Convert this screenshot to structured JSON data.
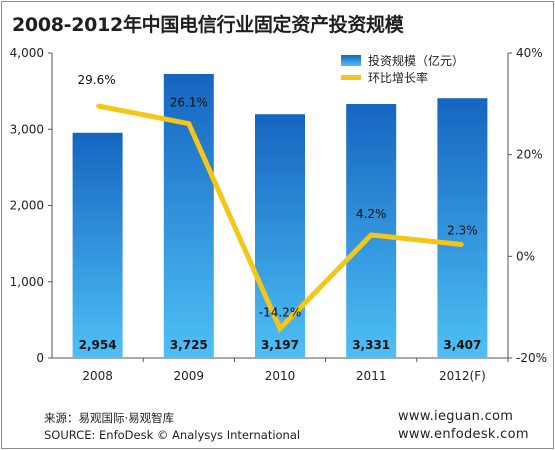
{
  "title": "2008-2012年中国电信行业固定资产投资规模",
  "legend": {
    "bar_label": "投资规模（亿元）",
    "line_label": "环比增长率"
  },
  "colors": {
    "bar_top": "#1565c0",
    "bar_bottom": "#4ec0f5",
    "line": "#f5c518"
  },
  "chart_data": {
    "type": "bar",
    "categories": [
      "2008",
      "2009",
      "2010",
      "2011",
      "2012(F)"
    ],
    "series": [
      {
        "name": "投资规模（亿元）",
        "type": "bar",
        "axis": "left",
        "values": [
          2954,
          3725,
          3197,
          3331,
          3407
        ],
        "labels": [
          "2,954",
          "3,725",
          "3,197",
          "3,331",
          "3,407"
        ]
      },
      {
        "name": "环比增长率",
        "type": "line",
        "axis": "right",
        "values": [
          29.6,
          26.1,
          -14.2,
          4.2,
          2.3
        ],
        "labels": [
          "29.6%",
          "26.1%",
          "-14.2%",
          "4.2%",
          "2.3%"
        ]
      }
    ],
    "y_left": {
      "range": [
        0,
        4000
      ],
      "ticks": [
        "0",
        "1,000",
        "2,000",
        "3,000",
        "4,000"
      ]
    },
    "y_right": {
      "range": [
        -20,
        40
      ],
      "ticks": [
        "-20%",
        "0%",
        "20%",
        "40%"
      ]
    },
    "legend_position": "top-right"
  },
  "footer": {
    "source_cn": "来源：易观国际·易观智库",
    "source_en": "SOURCE: EnfoDesk © Analysys International",
    "url1": "www.ieguan.com",
    "url2": "www.enfodesk.com"
  }
}
